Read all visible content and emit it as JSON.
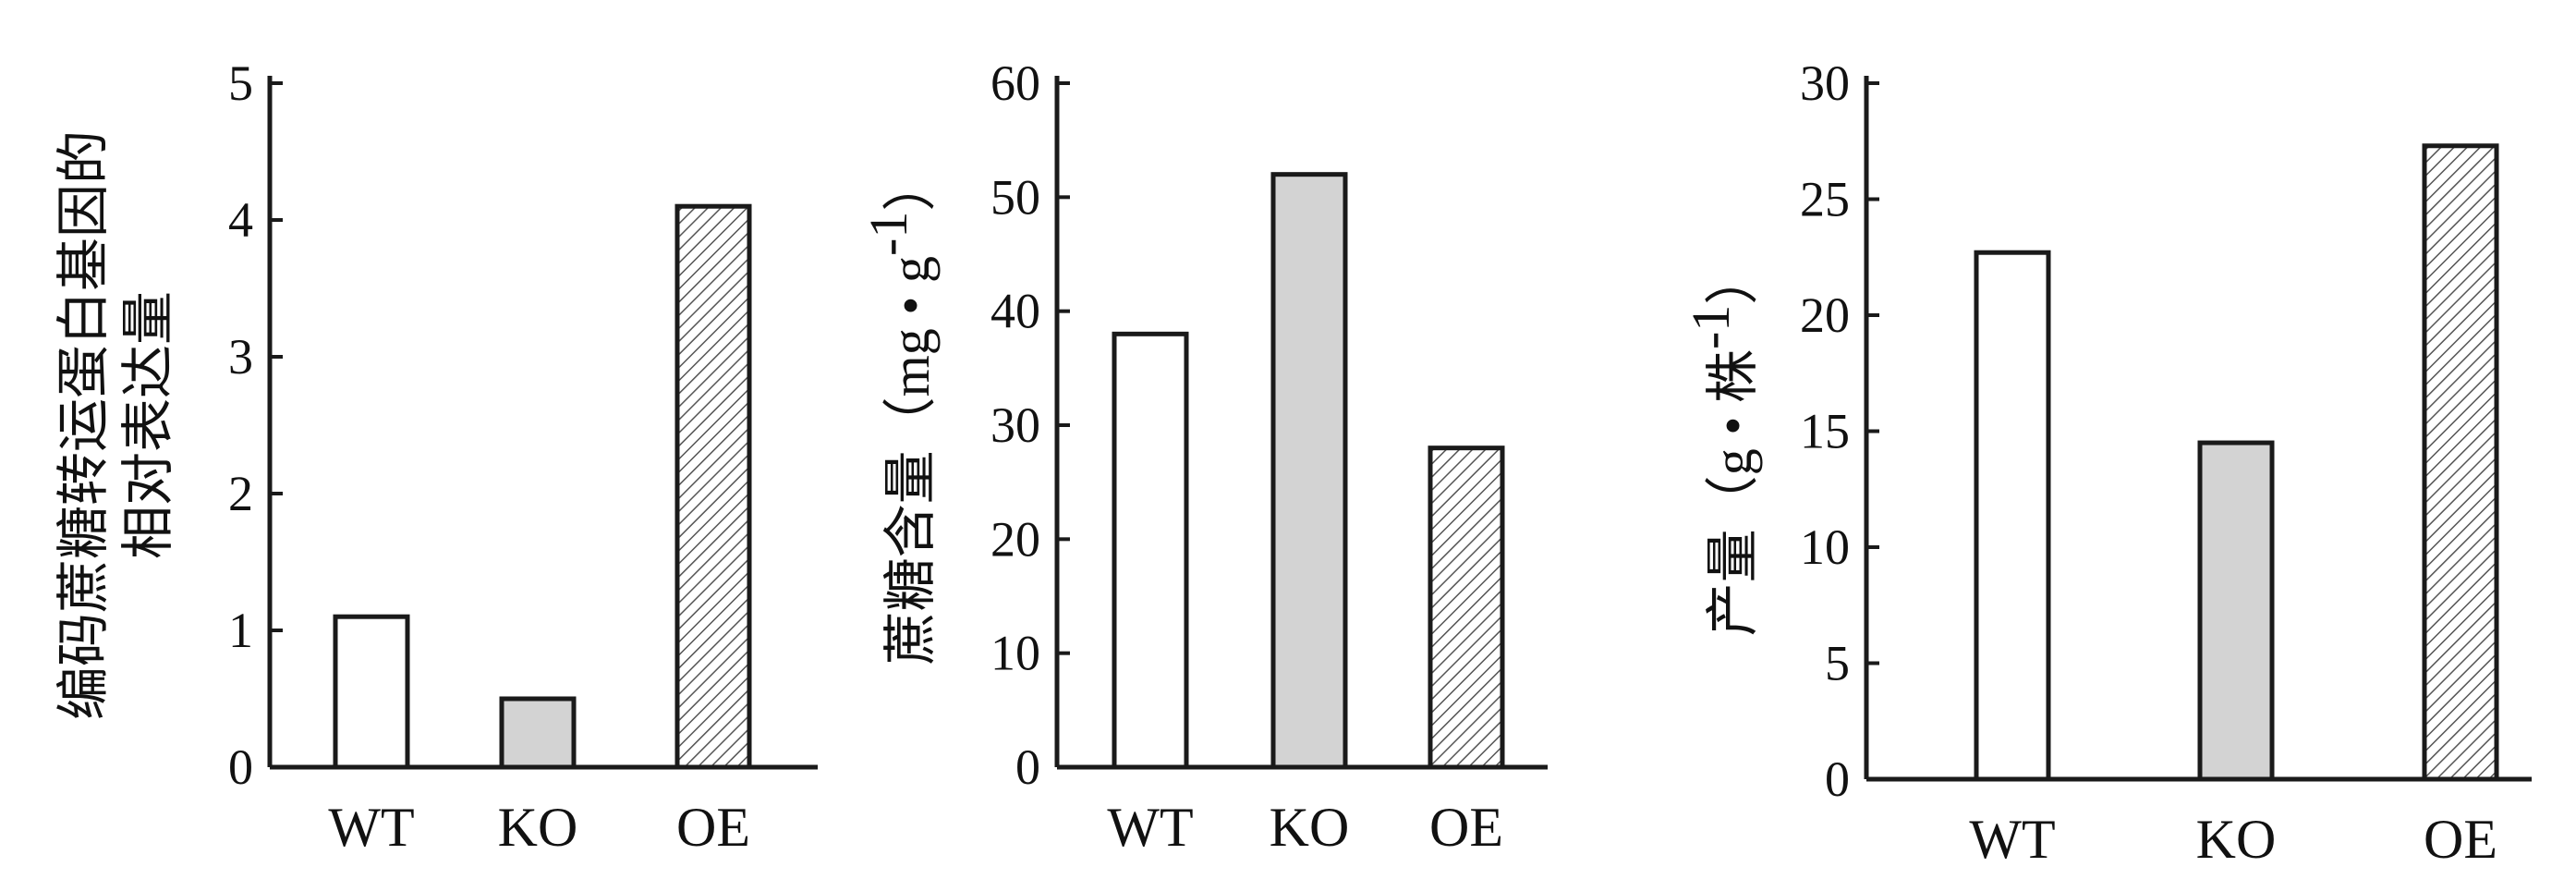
{
  "chart_data": [
    {
      "type": "bar",
      "ylabel_lines": [
        "编码蔗糖转运蛋白基因的",
        "相对表达量"
      ],
      "categories": [
        "WT",
        "KO",
        "OE"
      ],
      "values": [
        1.1,
        0.5,
        4.1
      ],
      "ylim": [
        0,
        5
      ],
      "yticks": [
        0,
        1,
        2,
        3,
        4,
        5
      ],
      "bar_styles": [
        "white",
        "gray",
        "hatched"
      ]
    },
    {
      "type": "bar",
      "ylabel_main": "蔗糖含量",
      "ylabel_unit": "（mg • g",
      "ylabel_sup": "-1",
      "ylabel_close": "）",
      "categories": [
        "WT",
        "KO",
        "OE"
      ],
      "values": [
        38,
        52,
        28
      ],
      "ylim": [
        0,
        60
      ],
      "yticks": [
        0,
        10,
        20,
        30,
        40,
        50,
        60
      ],
      "bar_styles": [
        "white",
        "gray",
        "hatched"
      ]
    },
    {
      "type": "bar",
      "ylabel_main": "产量",
      "ylabel_unit": "（g • 株",
      "ylabel_sup": "-1",
      "ylabel_close": "）",
      "categories": [
        "WT",
        "KO",
        "OE"
      ],
      "values": [
        22.7,
        14.5,
        27.3
      ],
      "ylim": [
        0,
        30
      ],
      "yticks": [
        0,
        5,
        10,
        15,
        20,
        25,
        30
      ],
      "bar_styles": [
        "white",
        "gray",
        "hatched"
      ]
    }
  ],
  "colors": {
    "bar_white": "#ffffff",
    "bar_gray": "#d3d3d3",
    "hatch_line": "#555555",
    "axis": "#1a1a1a"
  }
}
